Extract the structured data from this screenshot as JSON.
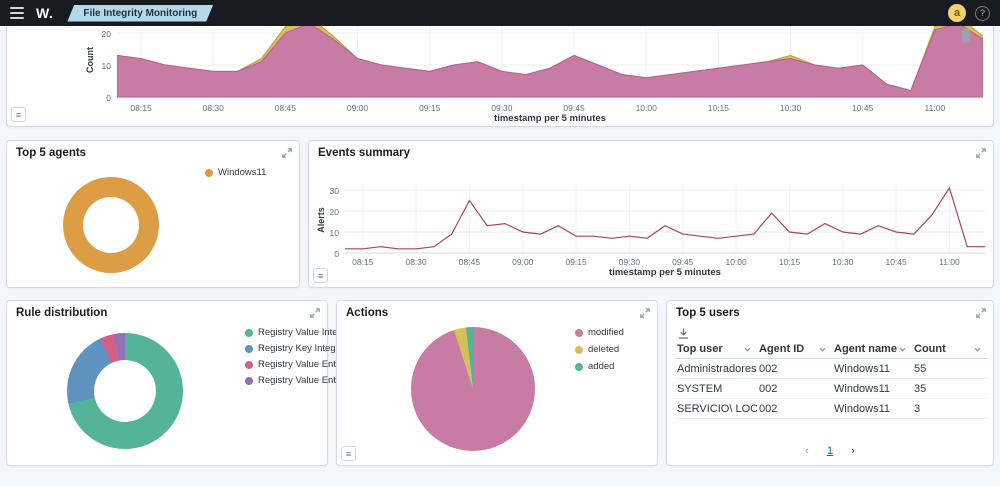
{
  "header": {
    "logo": "W.",
    "breadcrumb": "File Integrity Monitoring",
    "avatar_initial": "a",
    "help": "?"
  },
  "icons": {
    "legend_toggle": "≡",
    "menu": "hamburger",
    "expand": "diagonal-expand-arrows",
    "download": "arrow-into-tray",
    "sort": "chevron-down"
  },
  "colors": {
    "topbar": "#191b20",
    "breadcrumb_bg": "#b4d9ea",
    "panel_border": "#d3dae6",
    "area_pink": "#C77BA5",
    "area_yellow": "#D6BF57",
    "line_red": "#AC4653",
    "donut_orange": "#DD9D45",
    "green": "#54B399",
    "blue": "#6092C0",
    "pink": "#D36086",
    "purple": "#9170B8",
    "link_blue": "#006BB4"
  },
  "panels": {
    "evolution": {
      "ylabel": "Count",
      "xlabel": "timestamp per 5 minutes"
    },
    "top_agents": {
      "title": "Top 5 agents"
    },
    "events_summary": {
      "title": "Events summary",
      "ylabel": "Alerts",
      "xlabel": "timestamp per 5 minutes"
    },
    "rule_distribution": {
      "title": "Rule distribution"
    },
    "actions": {
      "title": "Actions"
    },
    "top_users": {
      "title": "Top 5 users",
      "columns": [
        "Top user",
        "Agent ID",
        "Agent name",
        "Count"
      ],
      "rows": [
        [
          "Administradores",
          "002",
          "Windows11",
          "55"
        ],
        [
          "SYSTEM",
          "002",
          "Windows11",
          "35"
        ],
        [
          "SERVICIO\\ LOCAL",
          "002",
          "Windows11",
          "3"
        ]
      ],
      "pagination": {
        "prev": "‹",
        "page": "1",
        "next": "›"
      }
    }
  },
  "chart_data": [
    {
      "id": "fim-alerts-evolution",
      "type": "area",
      "stacked": true,
      "xlabel": "timestamp per 5 minutes",
      "ylabel": "Count",
      "ylim": [
        0,
        20
      ],
      "yticks": [
        0,
        10,
        20
      ],
      "x": [
        "08:10",
        "08:15",
        "08:20",
        "08:25",
        "08:30",
        "08:35",
        "08:40",
        "08:45",
        "08:50",
        "08:55",
        "09:00",
        "09:05",
        "09:10",
        "09:15",
        "09:20",
        "09:25",
        "09:30",
        "09:35",
        "09:40",
        "09:45",
        "09:50",
        "09:55",
        "10:00",
        "10:05",
        "10:10",
        "10:15",
        "10:20",
        "10:25",
        "10:30",
        "10:35",
        "10:40",
        "10:45",
        "10:50",
        "10:55",
        "11:00",
        "11:05",
        "11:10"
      ],
      "series": [
        {
          "name": "modified",
          "color": "#C77BA5",
          "stroke": "#B06090",
          "values": [
            13,
            12,
            10,
            9,
            8,
            8,
            11,
            20,
            23,
            18,
            12,
            10,
            9,
            8,
            10,
            11,
            8,
            7,
            9,
            13,
            10,
            7,
            6,
            7,
            8,
            9,
            10,
            11,
            12,
            10,
            9,
            10,
            4,
            2,
            21,
            23,
            18
          ]
        },
        {
          "name": "deleted",
          "color": "#D6BF57",
          "stroke": "#BCA23C",
          "values": [
            0,
            0,
            0,
            0,
            0,
            0,
            1,
            2,
            2,
            1,
            0,
            0,
            0,
            0,
            0,
            0,
            0,
            0,
            0,
            0,
            0,
            0,
            0,
            0,
            0,
            0,
            0,
            0,
            1,
            0,
            0,
            0,
            0,
            0,
            1,
            2,
            1
          ]
        }
      ]
    },
    {
      "id": "top-5-agents",
      "type": "pie",
      "donut": true,
      "legend_position": "right",
      "slices": [
        {
          "label": "Windows11",
          "pct": 100,
          "color": "#DD9D45"
        }
      ]
    },
    {
      "id": "events-summary",
      "type": "line",
      "xlabel": "timestamp per 5 minutes",
      "ylabel": "Alerts",
      "ylim": [
        0,
        33
      ],
      "yticks": [
        0,
        10,
        20,
        30
      ],
      "x": [
        "08:10",
        "08:15",
        "08:20",
        "08:25",
        "08:30",
        "08:35",
        "08:40",
        "08:45",
        "08:50",
        "08:55",
        "09:00",
        "09:05",
        "09:10",
        "09:15",
        "09:20",
        "09:25",
        "09:30",
        "09:35",
        "09:40",
        "09:45",
        "09:50",
        "09:55",
        "10:00",
        "10:05",
        "10:10",
        "10:15",
        "10:20",
        "10:25",
        "10:30",
        "10:35",
        "10:40",
        "10:45",
        "10:50",
        "10:55",
        "11:00",
        "11:05",
        "11:10"
      ],
      "series": [
        {
          "name": "Alerts",
          "color": "#AC4653",
          "values": [
            2,
            2,
            3,
            2,
            2,
            3,
            9,
            25,
            13,
            14,
            10,
            9,
            13,
            8,
            8,
            7,
            8,
            7,
            13,
            9,
            8,
            7,
            8,
            9,
            19,
            10,
            9,
            14,
            10,
            9,
            13,
            10,
            9,
            18,
            31,
            3,
            3
          ]
        }
      ]
    },
    {
      "id": "rule-distribution",
      "type": "pie",
      "donut": true,
      "legend_position": "right",
      "slices": [
        {
          "label": "Registry Value Integr...",
          "pct": 71.5,
          "color": "#54B399"
        },
        {
          "label": "Registry Key Integrity...",
          "pct": 21.5,
          "color": "#6092C0"
        },
        {
          "label": "Registry Value Entry ...",
          "pct": 4,
          "color": "#D36086"
        },
        {
          "label": "Registry Value Entry ...",
          "pct": 3,
          "color": "#9170B8"
        }
      ]
    },
    {
      "id": "actions",
      "type": "pie",
      "donut": false,
      "legend_position": "right",
      "slices": [
        {
          "label": "modified",
          "pct": 95,
          "color": "#C77BA5"
        },
        {
          "label": "deleted",
          "pct": 3.2,
          "color": "#D6BF57"
        },
        {
          "label": "added",
          "pct": 1.8,
          "color": "#54B399"
        }
      ]
    }
  ]
}
